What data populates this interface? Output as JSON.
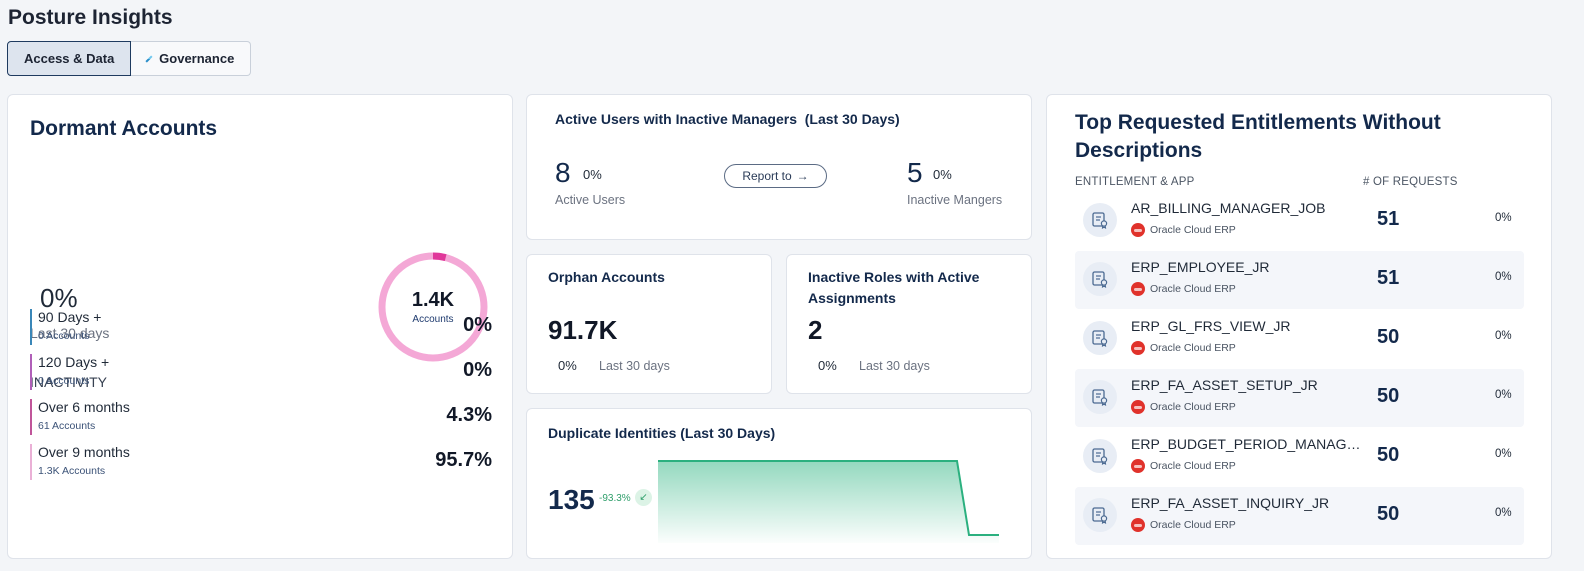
{
  "page": {
    "title": "Posture Insights"
  },
  "tabs": [
    {
      "label": "Access & Data",
      "active": true
    },
    {
      "label": "Governance",
      "active": false,
      "icon": "diamond-icon"
    }
  ],
  "dormant": {
    "title": "Dormant Accounts",
    "change_pct": "0%",
    "period": "Last 30 days",
    "donut": {
      "value": "1.4K",
      "label": "Accounts",
      "color": "#f4a8d6",
      "accent": "#e0379a",
      "accent_fraction": 0.04
    },
    "inactivity_label": "INACTIVITY",
    "buckets": [
      {
        "name": "90 Days +",
        "count": "0 Accounts",
        "pct": "0%",
        "color": "#3a87b8"
      },
      {
        "name": "120 Days +",
        "count": "0 Accounts",
        "pct": "0%",
        "color": "#b05fb8"
      },
      {
        "name": "Over 6 months",
        "count": "61 Accounts",
        "pct": "4.3%",
        "color": "#c0559a"
      },
      {
        "name": "Over 9 months",
        "count": "1.3K Accounts",
        "pct": "95.7%",
        "color": "#eab0d6"
      }
    ]
  },
  "active_users": {
    "title": "Active Users with Inactive Managers  (Last 30 Days)",
    "users_value": "8",
    "users_pct": "0%",
    "users_label": "Active Users",
    "report_button": "Report to",
    "managers_value": "5",
    "managers_pct": "0%",
    "managers_label": "Inactive Mangers"
  },
  "orphan": {
    "title": "Orphan Accounts",
    "value": "91.7K",
    "pct": "0%",
    "period": "Last 30 days"
  },
  "inactive_roles": {
    "title": "Inactive Roles with Active Assignments",
    "value": "2",
    "pct": "0%",
    "period": "Last 30 days"
  },
  "duplicate": {
    "title": "Duplicate Identities (Last 30 Days)",
    "value": "135",
    "change": "-93.3%",
    "trend_icon": "trend-down-icon",
    "line_color": "#2bb07f"
  },
  "top_requested": {
    "title": "Top Requested Entitlements Without Descriptions",
    "col_entitlement": "ENTITLEMENT & APP",
    "col_requests": "# OF REQUESTS",
    "rows": [
      {
        "name": "AR_BILLING_MANAGER_JOB",
        "app": "Oracle Cloud ERP",
        "requests": "51",
        "pct": "0%"
      },
      {
        "name": "ERP_EMPLOYEE_JR",
        "app": "Oracle Cloud ERP",
        "requests": "51",
        "pct": "0%"
      },
      {
        "name": "ERP_GL_FRS_VIEW_JR",
        "app": "Oracle Cloud ERP",
        "requests": "50",
        "pct": "0%"
      },
      {
        "name": "ERP_FA_ASSET_SETUP_JR",
        "app": "Oracle Cloud ERP",
        "requests": "50",
        "pct": "0%"
      },
      {
        "name": "ERP_BUDGET_PERIOD_MANAGE...",
        "app": "Oracle Cloud ERP",
        "requests": "50",
        "pct": "0%"
      },
      {
        "name": "ERP_FA_ASSET_INQUIRY_JR",
        "app": "Oracle Cloud ERP",
        "requests": "50",
        "pct": "0%"
      }
    ]
  }
}
